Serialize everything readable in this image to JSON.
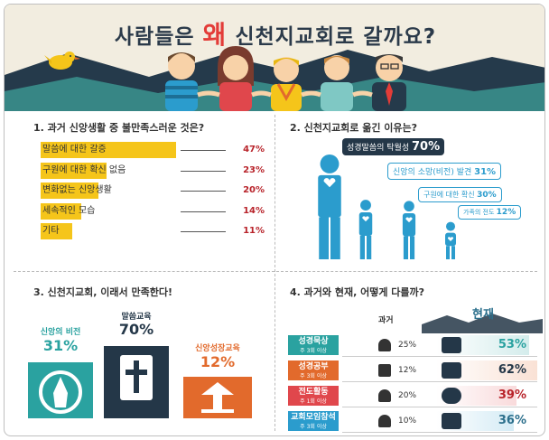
{
  "header": {
    "title_before": "사람들은",
    "title_highlight": "왜",
    "title_after": "신천지교회로 갈까요?"
  },
  "colors": {
    "yellow": "#f5c51a",
    "teal": "#2aa2a0",
    "navy": "#243748",
    "orange": "#e26a2c",
    "blue": "#2b9ccd",
    "pink": "#e0474c",
    "red": "#b8232a"
  },
  "panel1": {
    "title": "1. 과거 신앙생활 중 불만족스러운 것은?",
    "rows": [
      {
        "label": "말씀에 대한 갈증",
        "percent": "47%"
      },
      {
        "label": "구원에 대한 확신 없음",
        "percent": "23%"
      },
      {
        "label": "변화없는 신앙생활",
        "percent": "20%"
      },
      {
        "label": "세속적인 모습",
        "percent": "14%"
      },
      {
        "label": "기타",
        "percent": "11%"
      }
    ]
  },
  "panel2": {
    "title": "2. 신천지교회로 옮긴 이유는?",
    "items": [
      {
        "label": "성경말씀의 탁월성",
        "percent": "70%"
      },
      {
        "label": "신앙의 소망(비전) 발견",
        "percent": "31%"
      },
      {
        "label": "구원에 대한 확신",
        "percent": "30%"
      },
      {
        "label": "가족의 전도",
        "percent": "12%"
      }
    ]
  },
  "panel3": {
    "title": "3. 신천지교회, 이래서 만족한다!",
    "items": [
      {
        "label": "신앙의 비전",
        "percent": "31%",
        "icon": "praying-hands-icon"
      },
      {
        "label": "말씀교육",
        "percent": "70%",
        "icon": "bible-icon"
      },
      {
        "label": "신앙성장교육",
        "percent": "12%",
        "icon": "growth-icon"
      }
    ]
  },
  "panel4": {
    "title": "4. 과거와 현재, 어떻게 다를까?",
    "past_label": "과거",
    "present_label": "현재",
    "rows": [
      {
        "category": "성경묵상",
        "sub": "주 3회 이상",
        "past": "25%",
        "present": "53%",
        "color": "#2aa2a0",
        "past_icon": "meditation-icon",
        "present_icon": "group-meditation-icon"
      },
      {
        "category": "성경공부",
        "sub": "주 3회 이상",
        "past": "12%",
        "present": "62%",
        "color": "#e26a2c",
        "past_icon": "bible-icon",
        "present_icon": "bible-icon"
      },
      {
        "category": "전도활동",
        "sub": "주 1회 이상",
        "past": "20%",
        "present": "39%",
        "color": "#e0474c",
        "past_icon": "evangelism-icon",
        "present_icon": "globe-icon"
      },
      {
        "category": "교회모임참석",
        "sub": "주 3회 이상",
        "past": "10%",
        "present": "36%",
        "color": "#2b9ccd",
        "past_icon": "people-icon",
        "present_icon": "people-group-icon"
      }
    ]
  },
  "chart_data": [
    {
      "type": "bar",
      "title": "1. 과거 신앙생활 중 불만족스러운 것은?",
      "categories": [
        "말씀에 대한 갈증",
        "구원에 대한 확신 없음",
        "변화없는 신앙생활",
        "세속적인 모습",
        "기타"
      ],
      "values": [
        47,
        23,
        20,
        14,
        11
      ]
    },
    {
      "type": "bar",
      "title": "2. 신천지교회로 옮긴 이유는?",
      "categories": [
        "성경말씀의 탁월성",
        "신앙의 소망(비전) 발견",
        "구원에 대한 확신",
        "가족의 전도"
      ],
      "values": [
        70,
        31,
        30,
        12
      ]
    },
    {
      "type": "bar",
      "title": "3. 신천지교회, 이래서 만족한다!",
      "categories": [
        "신앙의 비전",
        "말씀교육",
        "신앙성장교육"
      ],
      "values": [
        31,
        70,
        12
      ]
    },
    {
      "type": "bar",
      "title": "4. 과거와 현재, 어떻게 다를까?",
      "categories": [
        "성경묵상",
        "성경공부",
        "전도활동",
        "교회모임참석"
      ],
      "series": [
        {
          "name": "과거",
          "values": [
            25,
            12,
            20,
            10
          ]
        },
        {
          "name": "현재",
          "values": [
            53,
            62,
            39,
            36
          ]
        }
      ]
    }
  ]
}
